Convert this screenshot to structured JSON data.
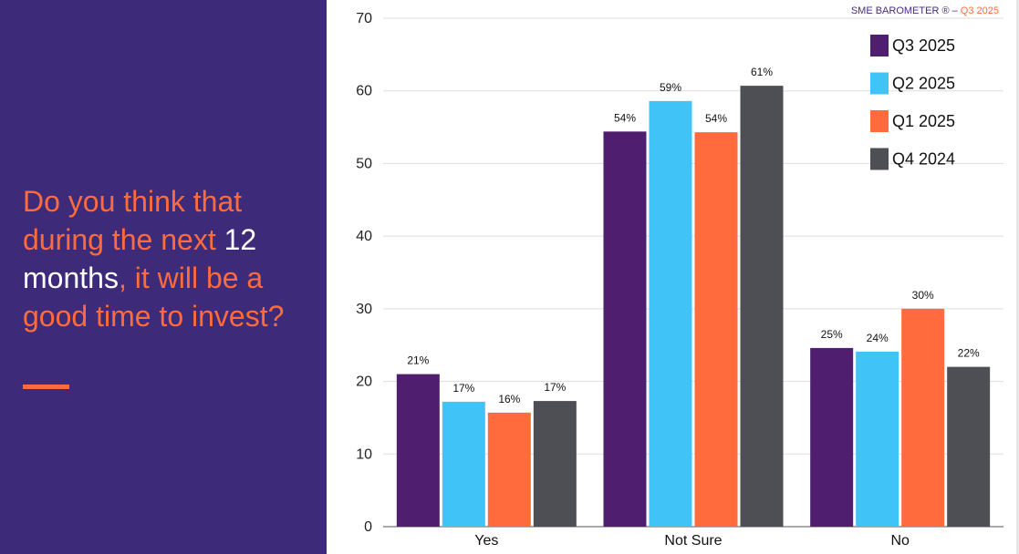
{
  "question": {
    "part1": "Do you think that during the next ",
    "highlight": "12 months",
    "part2": ", it will be a good time to invest?"
  },
  "header": {
    "brand": "SME BAROMETER ® – ",
    "quarter": "Q3 2025"
  },
  "colors": {
    "panel": "#3d2a78",
    "accent": "#ff6b3d",
    "q3_2025": "#4f1e6e",
    "q2_2025": "#40c4f7",
    "q1_2025": "#ff6b3d",
    "q4_2024": "#4d4f55"
  },
  "chart_data": {
    "type": "bar",
    "categories": [
      "Yes",
      "Not Sure",
      "No"
    ],
    "series": [
      {
        "name": "Q3 2025",
        "values": [
          21,
          54.4,
          24.6
        ],
        "labels": [
          "21%",
          "54%",
          "25%"
        ],
        "color": "#4f1e6e"
      },
      {
        "name": "Q2 2025",
        "values": [
          17.2,
          58.6,
          24.1
        ],
        "labels": [
          "17%",
          "59%",
          "24%"
        ],
        "color": "#40c4f7"
      },
      {
        "name": "Q1 2025",
        "values": [
          15.7,
          54.3,
          30
        ],
        "labels": [
          "16%",
          "54%",
          "30%"
        ],
        "color": "#ff6b3d"
      },
      {
        "name": "Q4 2024",
        "values": [
          17.3,
          60.7,
          22
        ],
        "labels": [
          "17%",
          "61%",
          "22%"
        ],
        "color": "#4d4f55"
      }
    ],
    "ylim": [
      0,
      70
    ],
    "yticks": [
      0,
      10,
      20,
      30,
      40,
      50,
      60,
      70
    ],
    "grid": true,
    "legend": "top-right"
  }
}
